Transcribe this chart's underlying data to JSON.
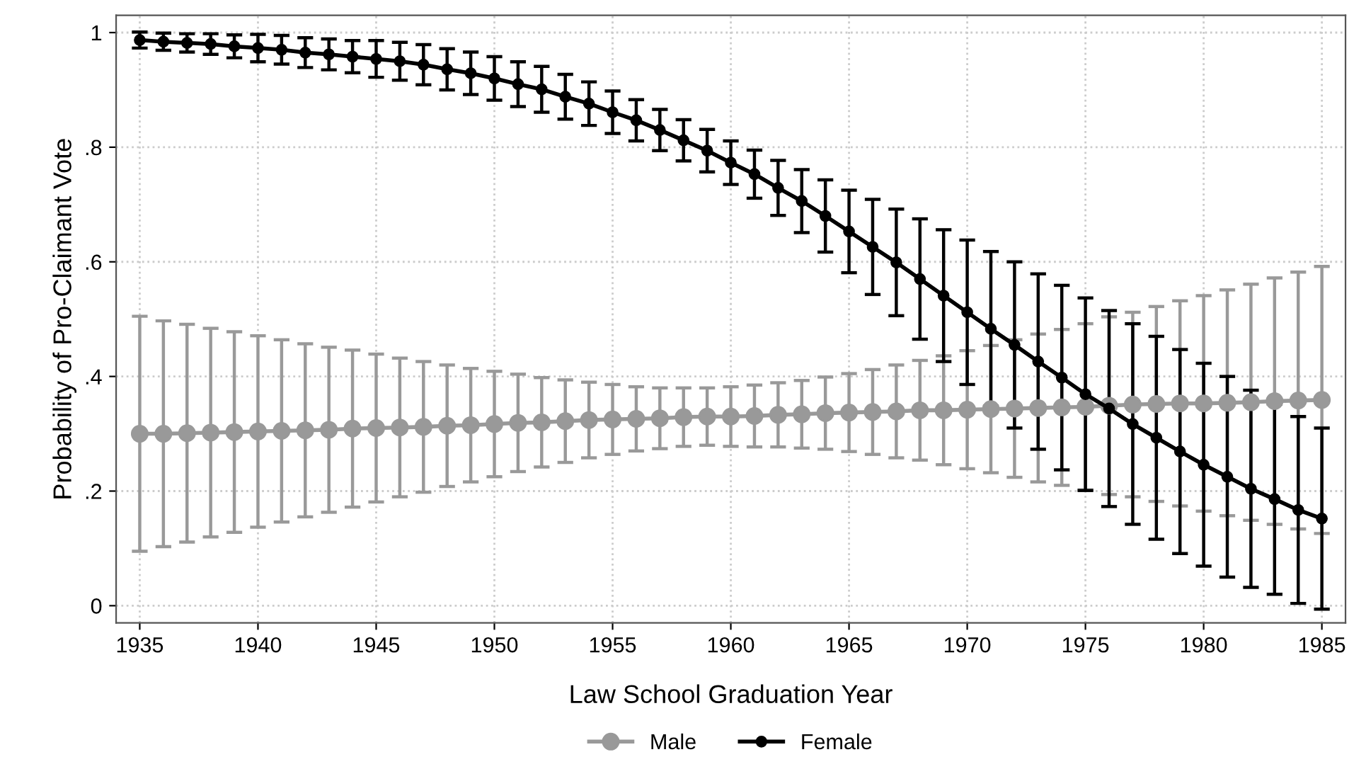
{
  "chart_data": {
    "type": "line",
    "xlabel": "Law School Graduation Year",
    "ylabel": "Probability of Pro-Claimant Vote",
    "x": [
      1935,
      1936,
      1937,
      1938,
      1939,
      1940,
      1941,
      1942,
      1943,
      1944,
      1945,
      1946,
      1947,
      1948,
      1949,
      1950,
      1951,
      1952,
      1953,
      1954,
      1955,
      1956,
      1957,
      1958,
      1959,
      1960,
      1961,
      1962,
      1963,
      1964,
      1965,
      1966,
      1967,
      1968,
      1969,
      1970,
      1971,
      1972,
      1973,
      1974,
      1975,
      1976,
      1977,
      1978,
      1979,
      1980,
      1981,
      1982,
      1983,
      1984,
      1985
    ],
    "series": [
      {
        "name": "Male",
        "color": "#999999",
        "values": [
          0.3,
          0.3,
          0.301,
          0.302,
          0.303,
          0.304,
          0.305,
          0.306,
          0.307,
          0.309,
          0.31,
          0.311,
          0.312,
          0.314,
          0.315,
          0.317,
          0.319,
          0.32,
          0.322,
          0.324,
          0.325,
          0.326,
          0.327,
          0.329,
          0.33,
          0.33,
          0.331,
          0.333,
          0.334,
          0.336,
          0.337,
          0.338,
          0.339,
          0.341,
          0.341,
          0.342,
          0.343,
          0.344,
          0.345,
          0.346,
          0.347,
          0.349,
          0.351,
          0.352,
          0.353,
          0.353,
          0.354,
          0.355,
          0.357,
          0.358,
          0.359
        ],
        "errors": [
          0.205,
          0.197,
          0.19,
          0.182,
          0.175,
          0.167,
          0.159,
          0.151,
          0.144,
          0.137,
          0.129,
          0.121,
          0.114,
          0.106,
          0.099,
          0.092,
          0.085,
          0.078,
          0.072,
          0.066,
          0.061,
          0.056,
          0.053,
          0.051,
          0.05,
          0.052,
          0.054,
          0.056,
          0.059,
          0.063,
          0.068,
          0.074,
          0.081,
          0.087,
          0.095,
          0.103,
          0.111,
          0.12,
          0.129,
          0.136,
          0.145,
          0.155,
          0.161,
          0.17,
          0.179,
          0.188,
          0.197,
          0.206,
          0.215,
          0.224,
          0.233
        ]
      },
      {
        "name": "Female",
        "color": "#000000",
        "values": [
          0.987,
          0.984,
          0.982,
          0.98,
          0.976,
          0.973,
          0.97,
          0.965,
          0.962,
          0.958,
          0.954,
          0.95,
          0.944,
          0.936,
          0.929,
          0.92,
          0.91,
          0.901,
          0.888,
          0.876,
          0.861,
          0.847,
          0.83,
          0.812,
          0.794,
          0.773,
          0.753,
          0.729,
          0.706,
          0.68,
          0.653,
          0.626,
          0.599,
          0.57,
          0.541,
          0.512,
          0.483,
          0.455,
          0.426,
          0.398,
          0.369,
          0.344,
          0.317,
          0.293,
          0.269,
          0.246,
          0.225,
          0.204,
          0.186,
          0.167,
          0.152
        ],
        "errors": [
          0.014,
          0.015,
          0.016,
          0.018,
          0.02,
          0.024,
          0.025,
          0.026,
          0.027,
          0.028,
          0.032,
          0.033,
          0.035,
          0.036,
          0.037,
          0.038,
          0.039,
          0.04,
          0.039,
          0.038,
          0.037,
          0.036,
          0.036,
          0.036,
          0.037,
          0.038,
          0.042,
          0.048,
          0.055,
          0.063,
          0.072,
          0.083,
          0.093,
          0.105,
          0.115,
          0.126,
          0.135,
          0.145,
          0.153,
          0.161,
          0.168,
          0.171,
          0.175,
          0.177,
          0.178,
          0.177,
          0.175,
          0.172,
          0.166,
          0.163,
          0.158
        ]
      }
    ],
    "xlim": [
      1934,
      1986
    ],
    "xticks": [
      1935,
      1940,
      1945,
      1950,
      1955,
      1960,
      1965,
      1970,
      1975,
      1980,
      1985
    ],
    "ylim": [
      -0.03,
      1.03
    ],
    "yticks": [
      0,
      {
        "value": 0.2,
        "label": ".2"
      },
      {
        "value": 0.4,
        "label": ".4"
      },
      {
        "value": 0.6,
        "label": ".6"
      },
      {
        "value": 0.8,
        "label": ".8"
      },
      1
    ],
    "grid": true,
    "legend": "bottom",
    "marker": "circle",
    "line_style": "solid"
  }
}
